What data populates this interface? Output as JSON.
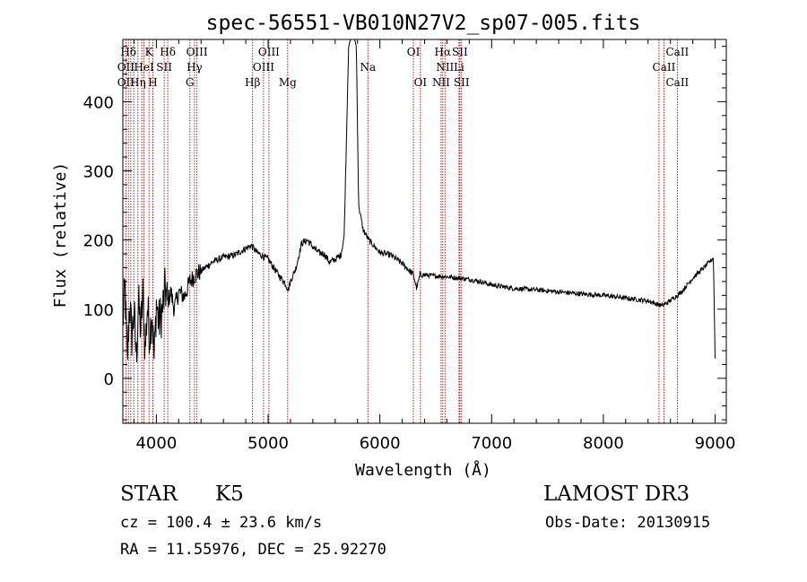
{
  "chart_data": {
    "type": "line",
    "title": "spec-56551-VB010N27V2_sp07-005.fits",
    "xlabel": "Wavelength (Å)",
    "ylabel": "Flux (relative)",
    "xlim": [
      3700,
      9100
    ],
    "ylim": [
      -65,
      490
    ],
    "xticks": [
      4000,
      5000,
      6000,
      7000,
      8000,
      9000
    ],
    "yticks": [
      0,
      100,
      200,
      300,
      400
    ],
    "spectrum_anchors": [
      [
        3700,
        80
      ],
      [
        3720,
        130
      ],
      [
        3740,
        20
      ],
      [
        3760,
        110
      ],
      [
        3780,
        60
      ],
      [
        3800,
        95
      ],
      [
        3820,
        30
      ],
      [
        3840,
        110
      ],
      [
        3860,
        70
      ],
      [
        3880,
        120
      ],
      [
        3900,
        40
      ],
      [
        3920,
        105
      ],
      [
        3940,
        60
      ],
      [
        3960,
        100
      ],
      [
        3980,
        25
      ],
      [
        4000,
        110
      ],
      [
        4020,
        80
      ],
      [
        4050,
        95
      ],
      [
        4080,
        130
      ],
      [
        4100,
        110
      ],
      [
        4130,
        125
      ],
      [
        4160,
        100
      ],
      [
        4200,
        125
      ],
      [
        4250,
        118
      ],
      [
        4300,
        140
      ],
      [
        4350,
        150
      ],
      [
        4400,
        155
      ],
      [
        4500,
        168
      ],
      [
        4600,
        175
      ],
      [
        4700,
        178
      ],
      [
        4800,
        188
      ],
      [
        4850,
        192
      ],
      [
        4900,
        182
      ],
      [
        5000,
        172
      ],
      [
        5100,
        148
      ],
      [
        5150,
        138
      ],
      [
        5180,
        128
      ],
      [
        5200,
        140
      ],
      [
        5250,
        160
      ],
      [
        5300,
        195
      ],
      [
        5350,
        200
      ],
      [
        5400,
        190
      ],
      [
        5450,
        182
      ],
      [
        5500,
        180
      ],
      [
        5550,
        168
      ],
      [
        5600,
        172
      ],
      [
        5650,
        178
      ],
      [
        5680,
        205
      ],
      [
        5720,
        480
      ],
      [
        5760,
        500
      ],
      [
        5790,
        480
      ],
      [
        5810,
        250
      ],
      [
        5850,
        215
      ],
      [
        5900,
        200
      ],
      [
        6000,
        182
      ],
      [
        6100,
        178
      ],
      [
        6200,
        166
      ],
      [
        6300,
        150
      ],
      [
        6330,
        130
      ],
      [
        6360,
        150
      ],
      [
        6500,
        148
      ],
      [
        6600,
        147
      ],
      [
        6700,
        145
      ],
      [
        6800,
        143
      ],
      [
        6900,
        140
      ],
      [
        7000,
        135
      ],
      [
        7200,
        130
      ],
      [
        7400,
        128
      ],
      [
        7600,
        125
      ],
      [
        7800,
        122
      ],
      [
        8000,
        120
      ],
      [
        8200,
        116
      ],
      [
        8400,
        112
      ],
      [
        8520,
        105
      ],
      [
        8560,
        108
      ],
      [
        8620,
        115
      ],
      [
        8700,
        125
      ],
      [
        8800,
        145
      ],
      [
        8900,
        160
      ],
      [
        8960,
        170
      ],
      [
        8985,
        175
      ],
      [
        9000,
        30
      ]
    ],
    "reference_lines": [
      3727,
      3750,
      3771,
      3798,
      3835,
      3869,
      3889,
      3934,
      3969,
      4070,
      4102,
      4300,
      4341,
      4363,
      4861,
      4959,
      5007,
      5175,
      5893,
      6300,
      6363,
      6548,
      6563,
      6583,
      6708,
      6716,
      6731,
      8498,
      8542,
      8662
    ],
    "line_labels": [
      {
        "text": "Hδ",
        "x": 3750,
        "row": 1
      },
      {
        "text": "K",
        "x": 3934,
        "row": 1
      },
      {
        "text": "Hδ",
        "x": 4102,
        "row": 1
      },
      {
        "text": "OIII",
        "x": 4363,
        "row": 1
      },
      {
        "text": "OIII",
        "x": 5007,
        "row": 1
      },
      {
        "text": "OI",
        "x": 6300,
        "row": 1
      },
      {
        "text": "Hα",
        "x": 6563,
        "row": 1
      },
      {
        "text": "SII",
        "x": 6716,
        "row": 1
      },
      {
        "text": "CaII",
        "x": 8662,
        "row": 1
      },
      {
        "text": "OII",
        "x": 3727,
        "row": 2
      },
      {
        "text": "HeI",
        "x": 3889,
        "row": 2
      },
      {
        "text": "SII",
        "x": 4070,
        "row": 2
      },
      {
        "text": "Hγ",
        "x": 4341,
        "row": 2
      },
      {
        "text": "OIII",
        "x": 4959,
        "row": 2
      },
      {
        "text": "Na",
        "x": 5893,
        "row": 2
      },
      {
        "text": "NII",
        "x": 6583,
        "row": 2
      },
      {
        "text": "Li",
        "x": 6708,
        "row": 2
      },
      {
        "text": "CaII",
        "x": 8542,
        "row": 2
      },
      {
        "text": "OII",
        "x": 3727,
        "row": 3
      },
      {
        "text": "Hη",
        "x": 3835,
        "row": 3
      },
      {
        "text": "H",
        "x": 3969,
        "row": 3
      },
      {
        "text": "G",
        "x": 4300,
        "row": 3
      },
      {
        "text": "Hβ",
        "x": 4861,
        "row": 3
      },
      {
        "text": "Mg",
        "x": 5175,
        "row": 3
      },
      {
        "text": "OI",
        "x": 6363,
        "row": 3
      },
      {
        "text": "NII",
        "x": 6548,
        "row": 3
      },
      {
        "text": "SII",
        "x": 6731,
        "row": 3
      },
      {
        "text": "CaII",
        "x": 8662,
        "row": 3
      }
    ]
  },
  "info": {
    "class_label": "STAR",
    "subclass": "K5",
    "survey": "LAMOST DR3",
    "redshift": "cz = 100.4 ± 23.6 km/s",
    "obs_date": "Obs-Date: 20130915",
    "coords": "RA =  11.55976, DEC =  25.92270"
  },
  "colors": {
    "axes": "#000000",
    "spectrum": "#000000",
    "reference": "#b00000"
  }
}
